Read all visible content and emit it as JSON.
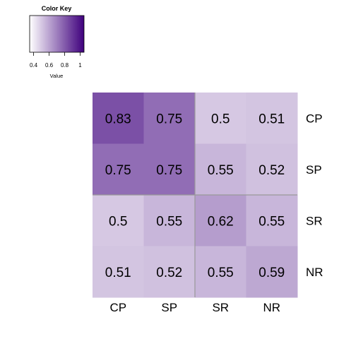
{
  "chart_data": {
    "type": "heatmap",
    "rows": [
      "CP",
      "SP",
      "SR",
      "NR"
    ],
    "columns": [
      "CP",
      "SP",
      "SR",
      "NR"
    ],
    "values": [
      [
        0.83,
        0.75,
        0.5,
        0.51
      ],
      [
        0.75,
        0.75,
        0.55,
        0.52
      ],
      [
        0.5,
        0.55,
        0.62,
        0.55
      ],
      [
        0.51,
        0.52,
        0.55,
        0.59
      ]
    ],
    "cell_labels": [
      [
        "0.83",
        "0.75",
        "0.5",
        "0.51"
      ],
      [
        "0.75",
        "0.75",
        "0.55",
        "0.52"
      ],
      [
        "0.5",
        "0.55",
        "0.62",
        "0.55"
      ],
      [
        "0.51",
        "0.52",
        "0.55",
        "0.59"
      ]
    ],
    "color_scale": {
      "min": 0.35,
      "max": 1.05,
      "low_color": "#ffffff",
      "high_color": "#3f007d"
    },
    "color_key": {
      "title": "Color Key",
      "xlabel": "Value",
      "ticks": [
        "0.4",
        "0.6",
        "0.8",
        "1"
      ],
      "tick_values": [
        0.4,
        0.6,
        0.8,
        1.0
      ]
    },
    "separator_after_row": 2,
    "separator_after_col": 2,
    "separator_color": "#999999"
  }
}
